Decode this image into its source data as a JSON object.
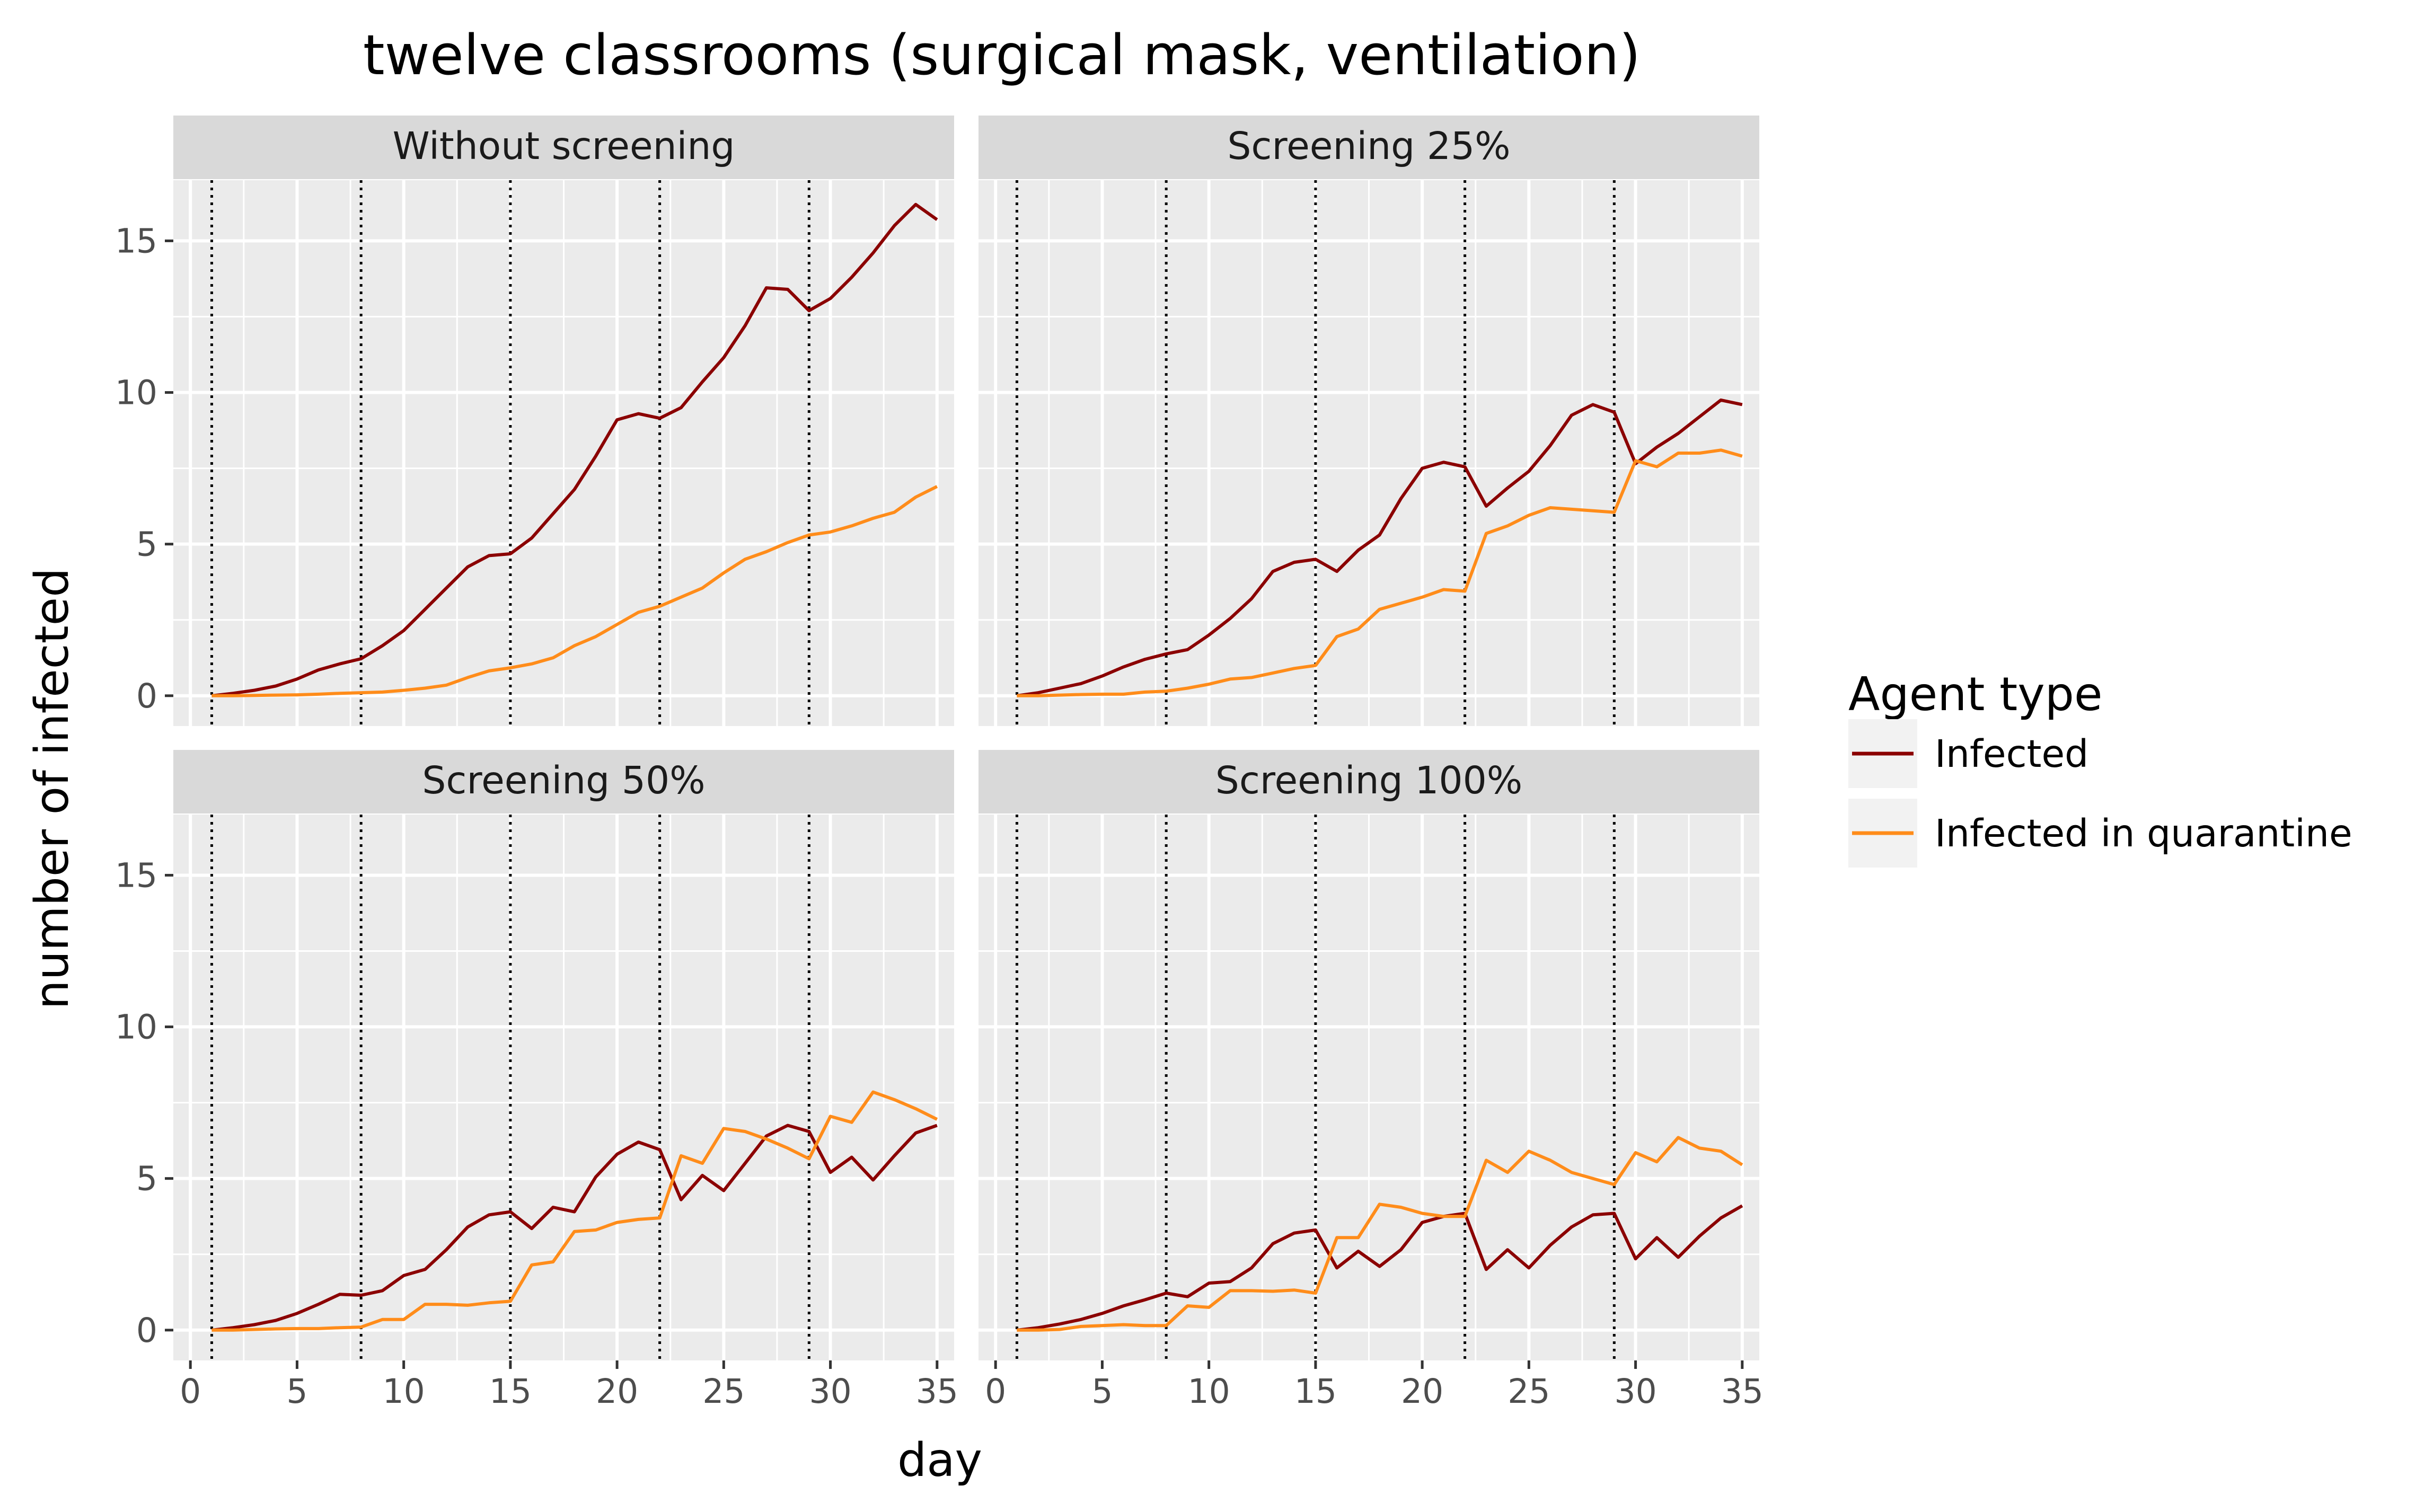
{
  "chart_data": {
    "type": "line",
    "title": "twelve classrooms (surgical mask, ventilation)",
    "xlabel": "day",
    "ylabel": "number of infected",
    "xlim": [
      -0.8,
      35.8
    ],
    "ylim": [
      -1.0,
      17.0
    ],
    "x_ticks": [
      0,
      5,
      10,
      15,
      20,
      25,
      30,
      35
    ],
    "y_ticks": [
      0,
      5,
      10,
      15
    ],
    "grid": true,
    "vlines": [
      1,
      8,
      15,
      22,
      29
    ],
    "vline_style": "dotted",
    "legend": {
      "title": "Agent type",
      "position": "right",
      "entries": [
        {
          "label": "Infected",
          "color": "#8b0000"
        },
        {
          "label": "Infected in quarantine",
          "color": "#ff8c1a"
        }
      ]
    },
    "colors": {
      "infected": "#8b0000",
      "quarantine": "#ff8c1a",
      "panel_bg": "#ebebeb",
      "strip_bg": "#d9d9d9",
      "grid": "#ffffff"
    },
    "x": [
      1,
      2,
      3,
      4,
      5,
      6,
      7,
      8,
      9,
      10,
      11,
      12,
      13,
      14,
      15,
      16,
      17,
      18,
      19,
      20,
      21,
      22,
      23,
      24,
      25,
      26,
      27,
      28,
      29,
      30,
      31,
      32,
      33,
      34,
      35
    ],
    "panels": [
      {
        "label": "Without screening",
        "series": [
          {
            "name": "Infected",
            "values": [
              0.0,
              0.08,
              0.18,
              0.32,
              0.55,
              0.85,
              1.05,
              1.22,
              1.65,
              2.15,
              2.85,
              3.55,
              4.25,
              4.62,
              4.68,
              5.2,
              6.0,
              6.8,
              7.9,
              9.1,
              9.3,
              9.15,
              9.5,
              10.35,
              11.15,
              12.2,
              13.45,
              13.4,
              12.7,
              13.1,
              13.8,
              14.6,
              15.5,
              16.2,
              15.7
            ]
          },
          {
            "name": "Infected in quarantine",
            "values": [
              0.0,
              0.0,
              0.01,
              0.02,
              0.03,
              0.05,
              0.08,
              0.1,
              0.12,
              0.18,
              0.25,
              0.35,
              0.6,
              0.82,
              0.92,
              1.05,
              1.25,
              1.65,
              1.95,
              2.35,
              2.75,
              2.95,
              3.25,
              3.55,
              4.05,
              4.5,
              4.75,
              5.05,
              5.3,
              5.4,
              5.6,
              5.85,
              6.05,
              6.55,
              6.9
            ]
          }
        ]
      },
      {
        "label": "Screening 25%",
        "series": [
          {
            "name": "Infected",
            "values": [
              0.0,
              0.1,
              0.25,
              0.4,
              0.65,
              0.95,
              1.2,
              1.38,
              1.52,
              2.0,
              2.55,
              3.2,
              4.1,
              4.4,
              4.5,
              4.1,
              4.8,
              5.3,
              6.5,
              7.5,
              7.7,
              7.55,
              6.25,
              6.85,
              7.4,
              8.25,
              9.25,
              9.6,
              9.35,
              7.65,
              8.2,
              8.65,
              9.2,
              9.75,
              9.6
            ]
          },
          {
            "name": "Infected in quarantine",
            "values": [
              0.0,
              0.0,
              0.02,
              0.04,
              0.05,
              0.05,
              0.12,
              0.15,
              0.25,
              0.38,
              0.55,
              0.6,
              0.75,
              0.9,
              1.0,
              1.95,
              2.2,
              2.85,
              3.05,
              3.25,
              3.5,
              3.45,
              5.35,
              5.6,
              5.95,
              6.2,
              6.15,
              6.1,
              6.05,
              7.75,
              7.55,
              8.0,
              8.0,
              8.1,
              7.9
            ]
          }
        ]
      },
      {
        "label": "Screening 50%",
        "series": [
          {
            "name": "Infected",
            "values": [
              0.0,
              0.08,
              0.18,
              0.32,
              0.55,
              0.85,
              1.18,
              1.15,
              1.3,
              1.8,
              2.0,
              2.65,
              3.4,
              3.8,
              3.9,
              3.35,
              4.05,
              3.9,
              5.05,
              5.8,
              6.2,
              5.95,
              4.3,
              5.1,
              4.6,
              5.5,
              6.4,
              6.75,
              6.55,
              5.2,
              5.7,
              4.95,
              5.75,
              6.5,
              6.75
            ]
          },
          {
            "name": "Infected in quarantine",
            "values": [
              0.0,
              0.0,
              0.02,
              0.04,
              0.05,
              0.05,
              0.08,
              0.1,
              0.35,
              0.35,
              0.85,
              0.85,
              0.82,
              0.9,
              0.95,
              2.15,
              2.25,
              3.25,
              3.3,
              3.55,
              3.65,
              3.7,
              5.75,
              5.5,
              6.65,
              6.55,
              6.3,
              6.0,
              5.65,
              7.05,
              6.85,
              7.85,
              7.6,
              7.3,
              6.95
            ]
          }
        ]
      },
      {
        "label": "Screening 100%",
        "series": [
          {
            "name": "Infected",
            "values": [
              0.0,
              0.08,
              0.2,
              0.35,
              0.55,
              0.8,
              1.0,
              1.22,
              1.1,
              1.55,
              1.6,
              2.05,
              2.85,
              3.2,
              3.3,
              2.05,
              2.6,
              2.1,
              2.65,
              3.55,
              3.75,
              3.85,
              2.0,
              2.65,
              2.05,
              2.8,
              3.4,
              3.8,
              3.85,
              2.35,
              3.05,
              2.4,
              3.1,
              3.7,
              4.1
            ]
          },
          {
            "name": "Infected in quarantine",
            "values": [
              0.0,
              0.0,
              0.02,
              0.12,
              0.15,
              0.18,
              0.15,
              0.15,
              0.8,
              0.75,
              1.3,
              1.3,
              1.28,
              1.32,
              1.22,
              3.05,
              3.05,
              4.15,
              4.05,
              3.85,
              3.75,
              3.75,
              5.6,
              5.2,
              5.9,
              5.6,
              5.2,
              5.0,
              4.8,
              5.85,
              5.55,
              6.35,
              6.0,
              5.9,
              5.45
            ]
          }
        ]
      }
    ]
  }
}
